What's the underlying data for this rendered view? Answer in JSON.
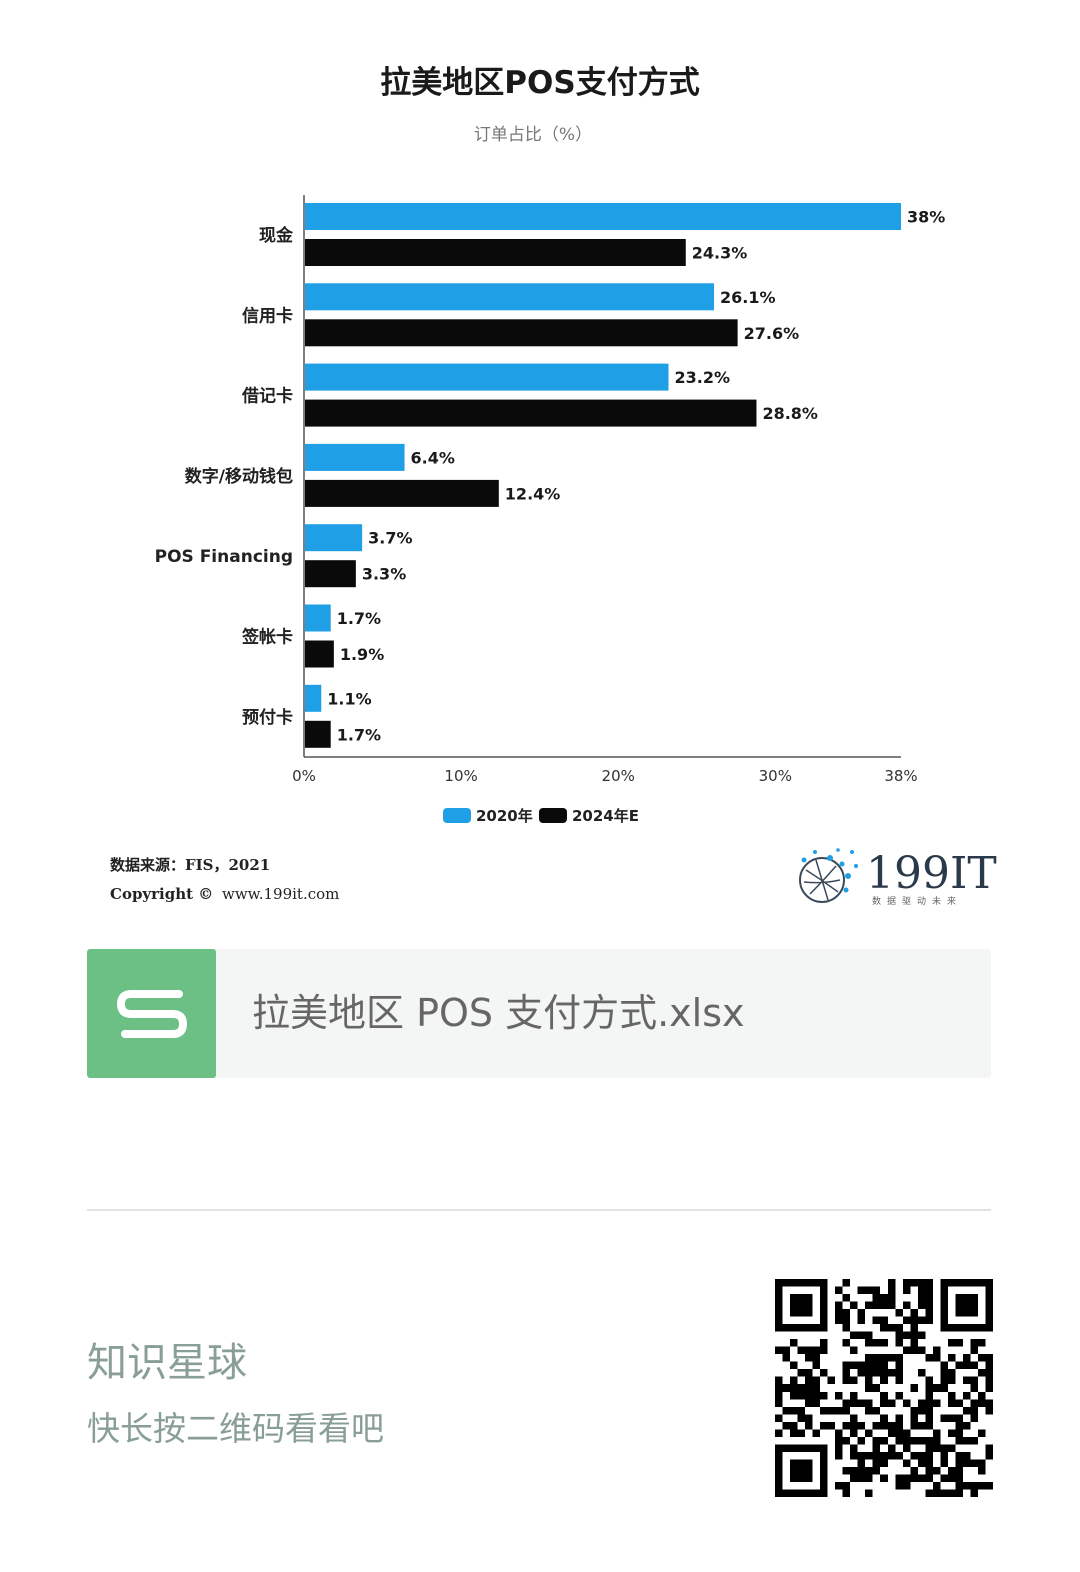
{
  "chart_data": {
    "type": "bar",
    "orientation": "horizontal",
    "title": "拉美地区POS支付方式",
    "subtitle": "订单占比（%）",
    "categories": [
      "现金",
      "信用卡",
      "借记卡",
      "数字/移动钱包",
      "POS Financing",
      "签帐卡",
      "预付卡"
    ],
    "series": [
      {
        "name": "2020年",
        "values": [
          38,
          26.1,
          23.2,
          6.4,
          3.7,
          1.7,
          1.1
        ],
        "labels": [
          "38%",
          "26.1%",
          "23.2%",
          "6.4%",
          "3.7%",
          "1.7%",
          "1.1%"
        ],
        "color": "#1e9fe6"
      },
      {
        "name": "2024年E",
        "values": [
          24.3,
          27.6,
          28.8,
          12.4,
          3.3,
          1.9,
          1.7
        ],
        "labels": [
          "24.3%",
          "27.6%",
          "28.8%",
          "12.4%",
          "3.3%",
          "1.9%",
          "1.7%"
        ],
        "color": "#0a0a0a"
      }
    ],
    "xticks": [
      0,
      10,
      20,
      30,
      38
    ],
    "xtick_labels": [
      "0%",
      "10%",
      "20%",
      "30%",
      "38%"
    ],
    "xlim": [
      0,
      38
    ],
    "legend_position": "bottom",
    "grid": false
  },
  "source": {
    "line1": "数据来源：FIS，2021",
    "copyright_label": "Copyright ©",
    "url": "www.199it.com"
  },
  "brand": {
    "name": "199IT",
    "tagline": "数据驱动未来"
  },
  "file": {
    "icon_letter": "S",
    "name": "拉美地区 POS 支付方式.xlsx"
  },
  "planet": {
    "title": "知识星球",
    "subtitle": "快长按二维码看看吧"
  },
  "colors": {
    "series_2020": "#1e9fe6",
    "series_2024": "#0a0a0a",
    "file_icon": "#6cbf85",
    "planet_text": "#8a9e98"
  }
}
